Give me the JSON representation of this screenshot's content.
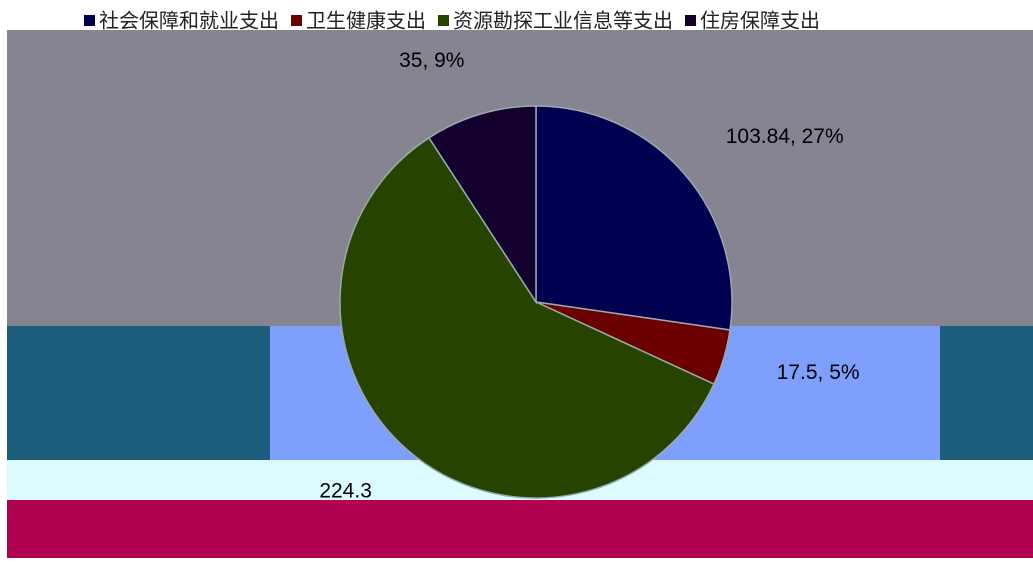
{
  "chart_data": {
    "type": "pie",
    "categories": [
      "社会保障和就业支出",
      "卫生健康支出",
      "资源勘探工业信息等支出",
      "住房保障支出"
    ],
    "values": [
      103.84,
      17.5,
      224.3,
      35
    ],
    "value_labels": [
      "103.84, 27%",
      "17.5, 5%",
      "224.3",
      "35, 9%"
    ],
    "colors": [
      "#000050",
      "#6b0000",
      "#264300",
      "#14002e"
    ],
    "legend": "top"
  }
}
